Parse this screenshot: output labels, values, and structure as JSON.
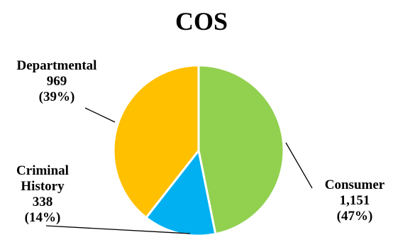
{
  "chart_data": {
    "type": "pie",
    "title": "COS",
    "slices": [
      {
        "label": "Consumer",
        "value": 1151,
        "value_text": "1,151",
        "percent": "(47%)",
        "color": "#92D050"
      },
      {
        "label": "Criminal History",
        "label_lines": [
          "Criminal",
          "History"
        ],
        "value": 338,
        "value_text": "338",
        "percent": "(14%)",
        "color": "#00B0F0"
      },
      {
        "label": "Departmental",
        "value": 969,
        "value_text": "969",
        "percent": "(39%)",
        "color": "#FFC000"
      }
    ],
    "legend": "none",
    "data_labels": "outside-with-leader-lines"
  }
}
